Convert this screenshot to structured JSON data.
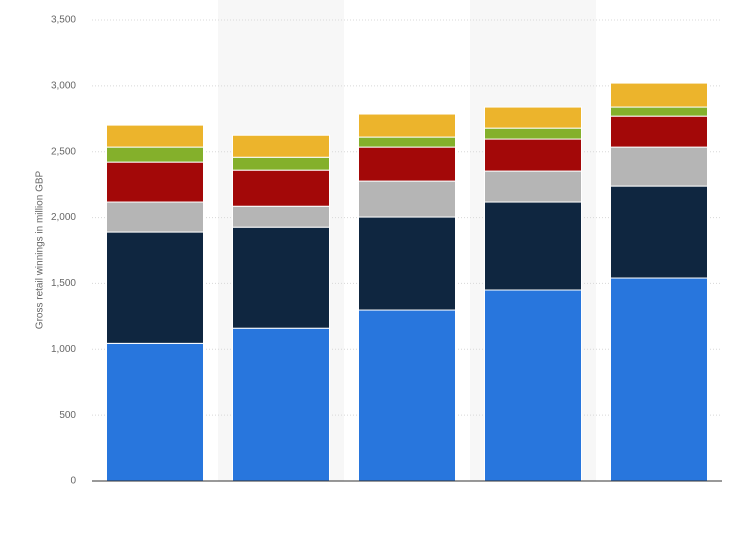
{
  "chart_data": {
    "type": "stacked_bar",
    "y_label": "Gross retail winnings in million GBP",
    "categories": [
      null,
      null,
      null,
      null,
      null
    ],
    "series": [
      {
        "color": "#2876dd",
        "values": [
          1045,
          1160,
          1298,
          1450,
          1541
        ]
      },
      {
        "color": "#0f2640",
        "values": [
          845,
          767,
          706,
          668,
          698
        ]
      },
      {
        "color": "#b5b5b5",
        "values": [
          228,
          159,
          273,
          235,
          296
        ]
      },
      {
        "color": "#a30808",
        "values": [
          303,
          274,
          258,
          243,
          235
        ]
      },
      {
        "color": "#84b02b",
        "values": [
          114,
          98,
          76,
          83,
          69
        ]
      },
      {
        "color": "#ecb42c",
        "values": [
          167,
          167,
          175,
          160,
          182
        ]
      }
    ],
    "ylim": [
      0,
      3500
    ],
    "yticks": [
      0,
      500,
      {
        "value": 1000,
        "label": "1,000"
      },
      {
        "value": 1500,
        "label": "1,500"
      },
      {
        "value": 2000,
        "label": "2,000"
      },
      {
        "value": 2500,
        "label": "2,500"
      },
      {
        "value": 3000,
        "label": "3,000"
      },
      {
        "value": 3500,
        "label": "3,500"
      }
    ],
    "grid": true
  }
}
